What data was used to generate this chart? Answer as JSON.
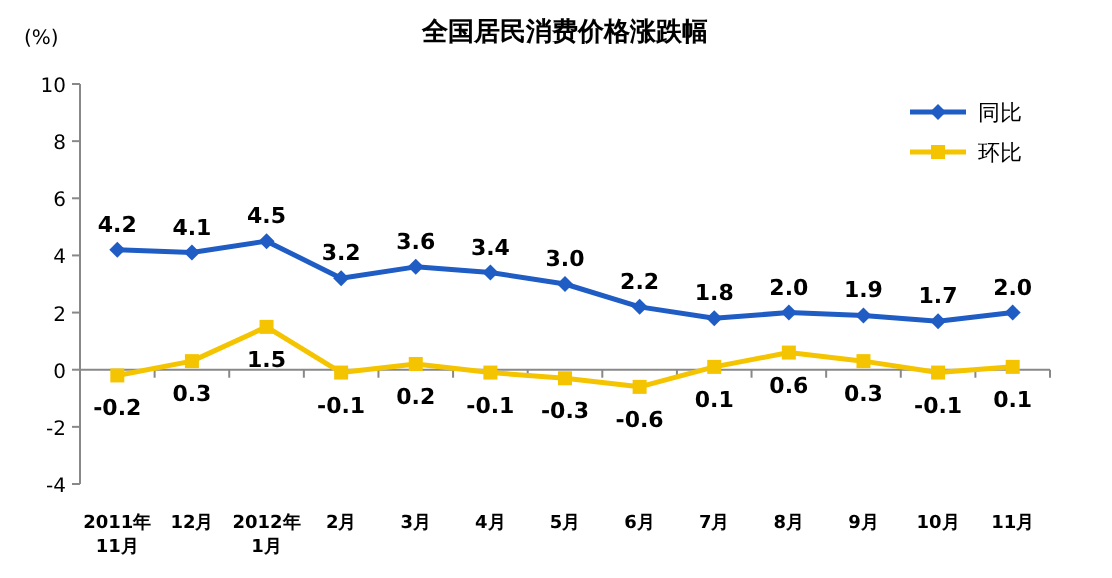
{
  "chart_data": {
    "type": "line",
    "title": "全国居民消费价格涨跌幅",
    "ylabel": "(%)",
    "categories": [
      "2011年 11月",
      "12月",
      "2012年 1月",
      "2月",
      "3月",
      "4月",
      "5月",
      "6月",
      "7月",
      "8月",
      "9月",
      "10月",
      "11月"
    ],
    "series": [
      {
        "name": "同比",
        "color": "#1f5cc4",
        "marker": "diamond",
        "values": [
          4.2,
          4.1,
          4.5,
          3.2,
          3.6,
          3.4,
          3.0,
          2.2,
          1.8,
          2.0,
          1.9,
          1.7,
          2.0
        ],
        "value_labels": [
          "4.2",
          "4.1",
          "4.5",
          "3.2",
          "3.6",
          "3.4",
          "3.0",
          "2.2",
          "1.8",
          "2.0",
          "1.9",
          "1.7",
          "2.0"
        ]
      },
      {
        "name": "环比",
        "color": "#f5c400",
        "marker": "square",
        "values": [
          -0.2,
          0.3,
          1.5,
          -0.1,
          0.2,
          -0.1,
          -0.3,
          -0.6,
          0.1,
          0.6,
          0.3,
          -0.1,
          0.1
        ],
        "value_labels": [
          "-0.2",
          "0.3",
          "1.5",
          "-0.1",
          "0.2",
          "-0.1",
          "-0.3",
          "-0.6",
          "0.1",
          "0.6",
          "0.3",
          "-0.1",
          "0.1"
        ]
      }
    ],
    "ylim": [
      -4,
      10
    ],
    "yticks": [
      -4,
      -2,
      0,
      2,
      4,
      6,
      8,
      10
    ],
    "legend": "top right"
  }
}
